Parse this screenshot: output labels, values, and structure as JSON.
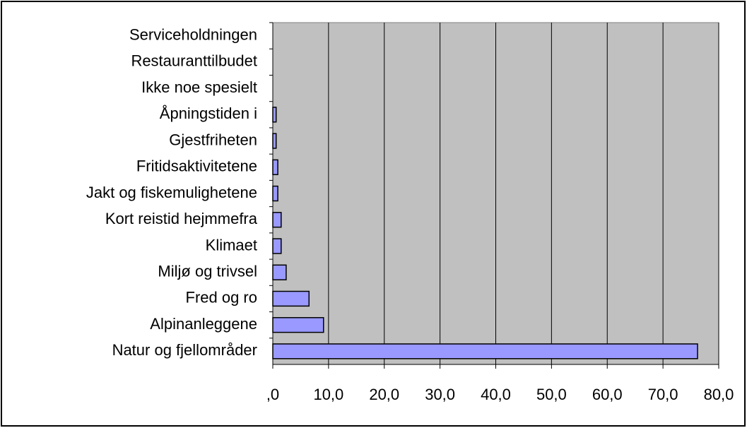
{
  "chart_data": {
    "type": "bar",
    "orientation": "horizontal",
    "categories": [
      "Serviceholdningen",
      "Restauranttilbudet",
      "Ikke noe spesielt",
      "Åpningstiden i",
      "Gjestfriheten",
      "Fritidsaktivitetene",
      "Jakt og fiskemulighetene",
      "Kort reistid hejmmefra",
      "Klimaet",
      "Miljø og trivsel",
      "Fred og ro",
      "Alpinanleggene",
      "Natur og fjellområder"
    ],
    "values": [
      0,
      0,
      0,
      0.6,
      0.6,
      0.9,
      0.9,
      1.5,
      1.5,
      2.4,
      6.5,
      9.1,
      76.2
    ],
    "color": "#9999ff",
    "xlim": [
      0,
      80
    ],
    "xticks": [
      {
        "value": 0,
        "label": ",0"
      },
      {
        "value": 10,
        "label": "10,0"
      },
      {
        "value": 20,
        "label": "20,0"
      },
      {
        "value": 30,
        "label": "30,0"
      },
      {
        "value": 40,
        "label": "40,0"
      },
      {
        "value": 50,
        "label": "50,0"
      },
      {
        "value": 60,
        "label": "60,0"
      },
      {
        "value": 70,
        "label": "70,0"
      },
      {
        "value": 80,
        "label": "80,0"
      }
    ],
    "grid": true
  }
}
